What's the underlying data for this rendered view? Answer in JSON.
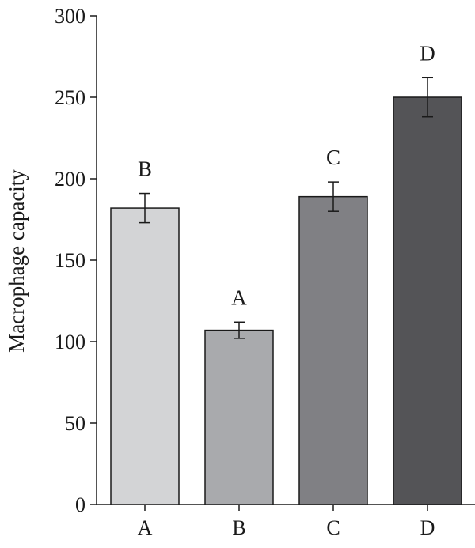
{
  "chart_data": {
    "type": "bar",
    "title": "",
    "xlabel": "",
    "ylabel": "Macrophage capacity",
    "ylim": [
      0,
      300
    ],
    "yticks": [
      0,
      50,
      100,
      150,
      200,
      250,
      300
    ],
    "categories": [
      "A",
      "B",
      "C",
      "D"
    ],
    "values": [
      182,
      107,
      189,
      250
    ],
    "errors": [
      9,
      5,
      9,
      12
    ],
    "significance_labels": [
      "B",
      "A",
      "C",
      "D"
    ],
    "bar_colors": [
      "#d3d4d6",
      "#a9aaad",
      "#808084",
      "#545457"
    ],
    "grid": false,
    "legend": "none"
  }
}
